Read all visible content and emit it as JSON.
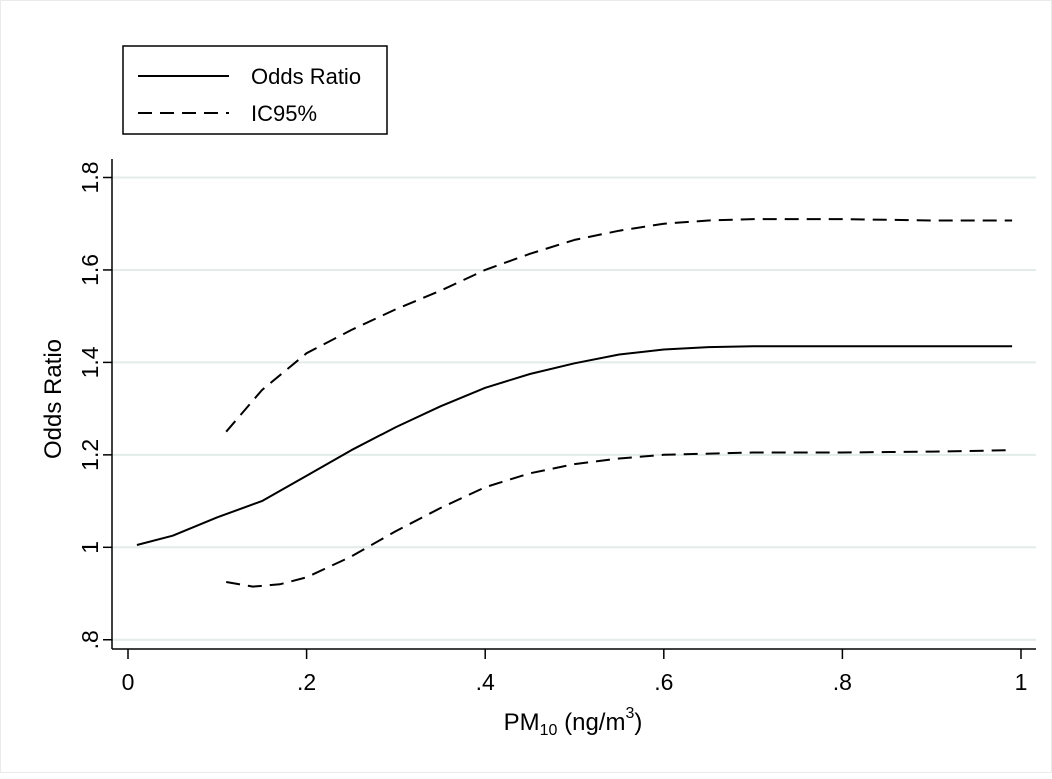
{
  "chart_data": {
    "type": "line",
    "xlabel": {
      "main": "PM",
      "sub": "10",
      "unit": " (ng/m",
      "sup": "3",
      "close": ")"
    },
    "ylabel": "Odds Ratio",
    "xlim": [
      0,
      1
    ],
    "ylim": [
      0.78,
      1.84
    ],
    "xticks": [
      {
        "value": 0,
        "label": "0"
      },
      {
        "value": 0.2,
        "label": ".2"
      },
      {
        "value": 0.4,
        "label": ".4"
      },
      {
        "value": 0.6,
        "label": ".6"
      },
      {
        "value": 0.8,
        "label": ".8"
      },
      {
        "value": 1,
        "label": "1"
      }
    ],
    "yticks": [
      {
        "value": 0.8,
        "label": ".8"
      },
      {
        "value": 1.0,
        "label": "1"
      },
      {
        "value": 1.2,
        "label": "1.2"
      },
      {
        "value": 1.4,
        "label": "1.4"
      },
      {
        "value": 1.6,
        "label": "1.6"
      },
      {
        "value": 1.8,
        "label": "1.8"
      }
    ],
    "grid": {
      "horizontal": true,
      "color": "#e3ece9"
    },
    "legend": {
      "placement": "top-left",
      "entries": [
        "Odds Ratio",
        "IC95%"
      ]
    },
    "series": [
      {
        "name": "Odds Ratio",
        "style": "solid",
        "color": "#000000",
        "points": [
          [
            0.01,
            1.005
          ],
          [
            0.05,
            1.025
          ],
          [
            0.1,
            1.065
          ],
          [
            0.15,
            1.1
          ],
          [
            0.2,
            1.155
          ],
          [
            0.25,
            1.21
          ],
          [
            0.3,
            1.26
          ],
          [
            0.35,
            1.305
          ],
          [
            0.4,
            1.345
          ],
          [
            0.45,
            1.375
          ],
          [
            0.5,
            1.398
          ],
          [
            0.55,
            1.417
          ],
          [
            0.6,
            1.428
          ],
          [
            0.65,
            1.433
          ],
          [
            0.7,
            1.435
          ],
          [
            0.8,
            1.435
          ],
          [
            0.9,
            1.435
          ],
          [
            0.99,
            1.435
          ]
        ]
      },
      {
        "name": "IC95%",
        "style": "dashed",
        "color": "#000000",
        "points": [
          [
            0.11,
            1.25
          ],
          [
            0.15,
            1.34
          ],
          [
            0.2,
            1.42
          ],
          [
            0.25,
            1.47
          ],
          [
            0.3,
            1.515
          ],
          [
            0.35,
            1.555
          ],
          [
            0.4,
            1.6
          ],
          [
            0.45,
            1.635
          ],
          [
            0.5,
            1.665
          ],
          [
            0.55,
            1.685
          ],
          [
            0.6,
            1.7
          ],
          [
            0.65,
            1.707
          ],
          [
            0.7,
            1.71
          ],
          [
            0.8,
            1.71
          ],
          [
            0.9,
            1.707
          ],
          [
            0.99,
            1.707
          ]
        ]
      },
      {
        "name": "",
        "style": "dashed",
        "color": "#000000",
        "points": [
          [
            0.11,
            0.925
          ],
          [
            0.14,
            0.915
          ],
          [
            0.17,
            0.92
          ],
          [
            0.2,
            0.935
          ],
          [
            0.25,
            0.98
          ],
          [
            0.3,
            1.035
          ],
          [
            0.35,
            1.085
          ],
          [
            0.4,
            1.13
          ],
          [
            0.45,
            1.16
          ],
          [
            0.5,
            1.18
          ],
          [
            0.55,
            1.192
          ],
          [
            0.6,
            1.2
          ],
          [
            0.7,
            1.205
          ],
          [
            0.8,
            1.205
          ],
          [
            0.9,
            1.207
          ],
          [
            0.99,
            1.21
          ]
        ]
      }
    ]
  }
}
